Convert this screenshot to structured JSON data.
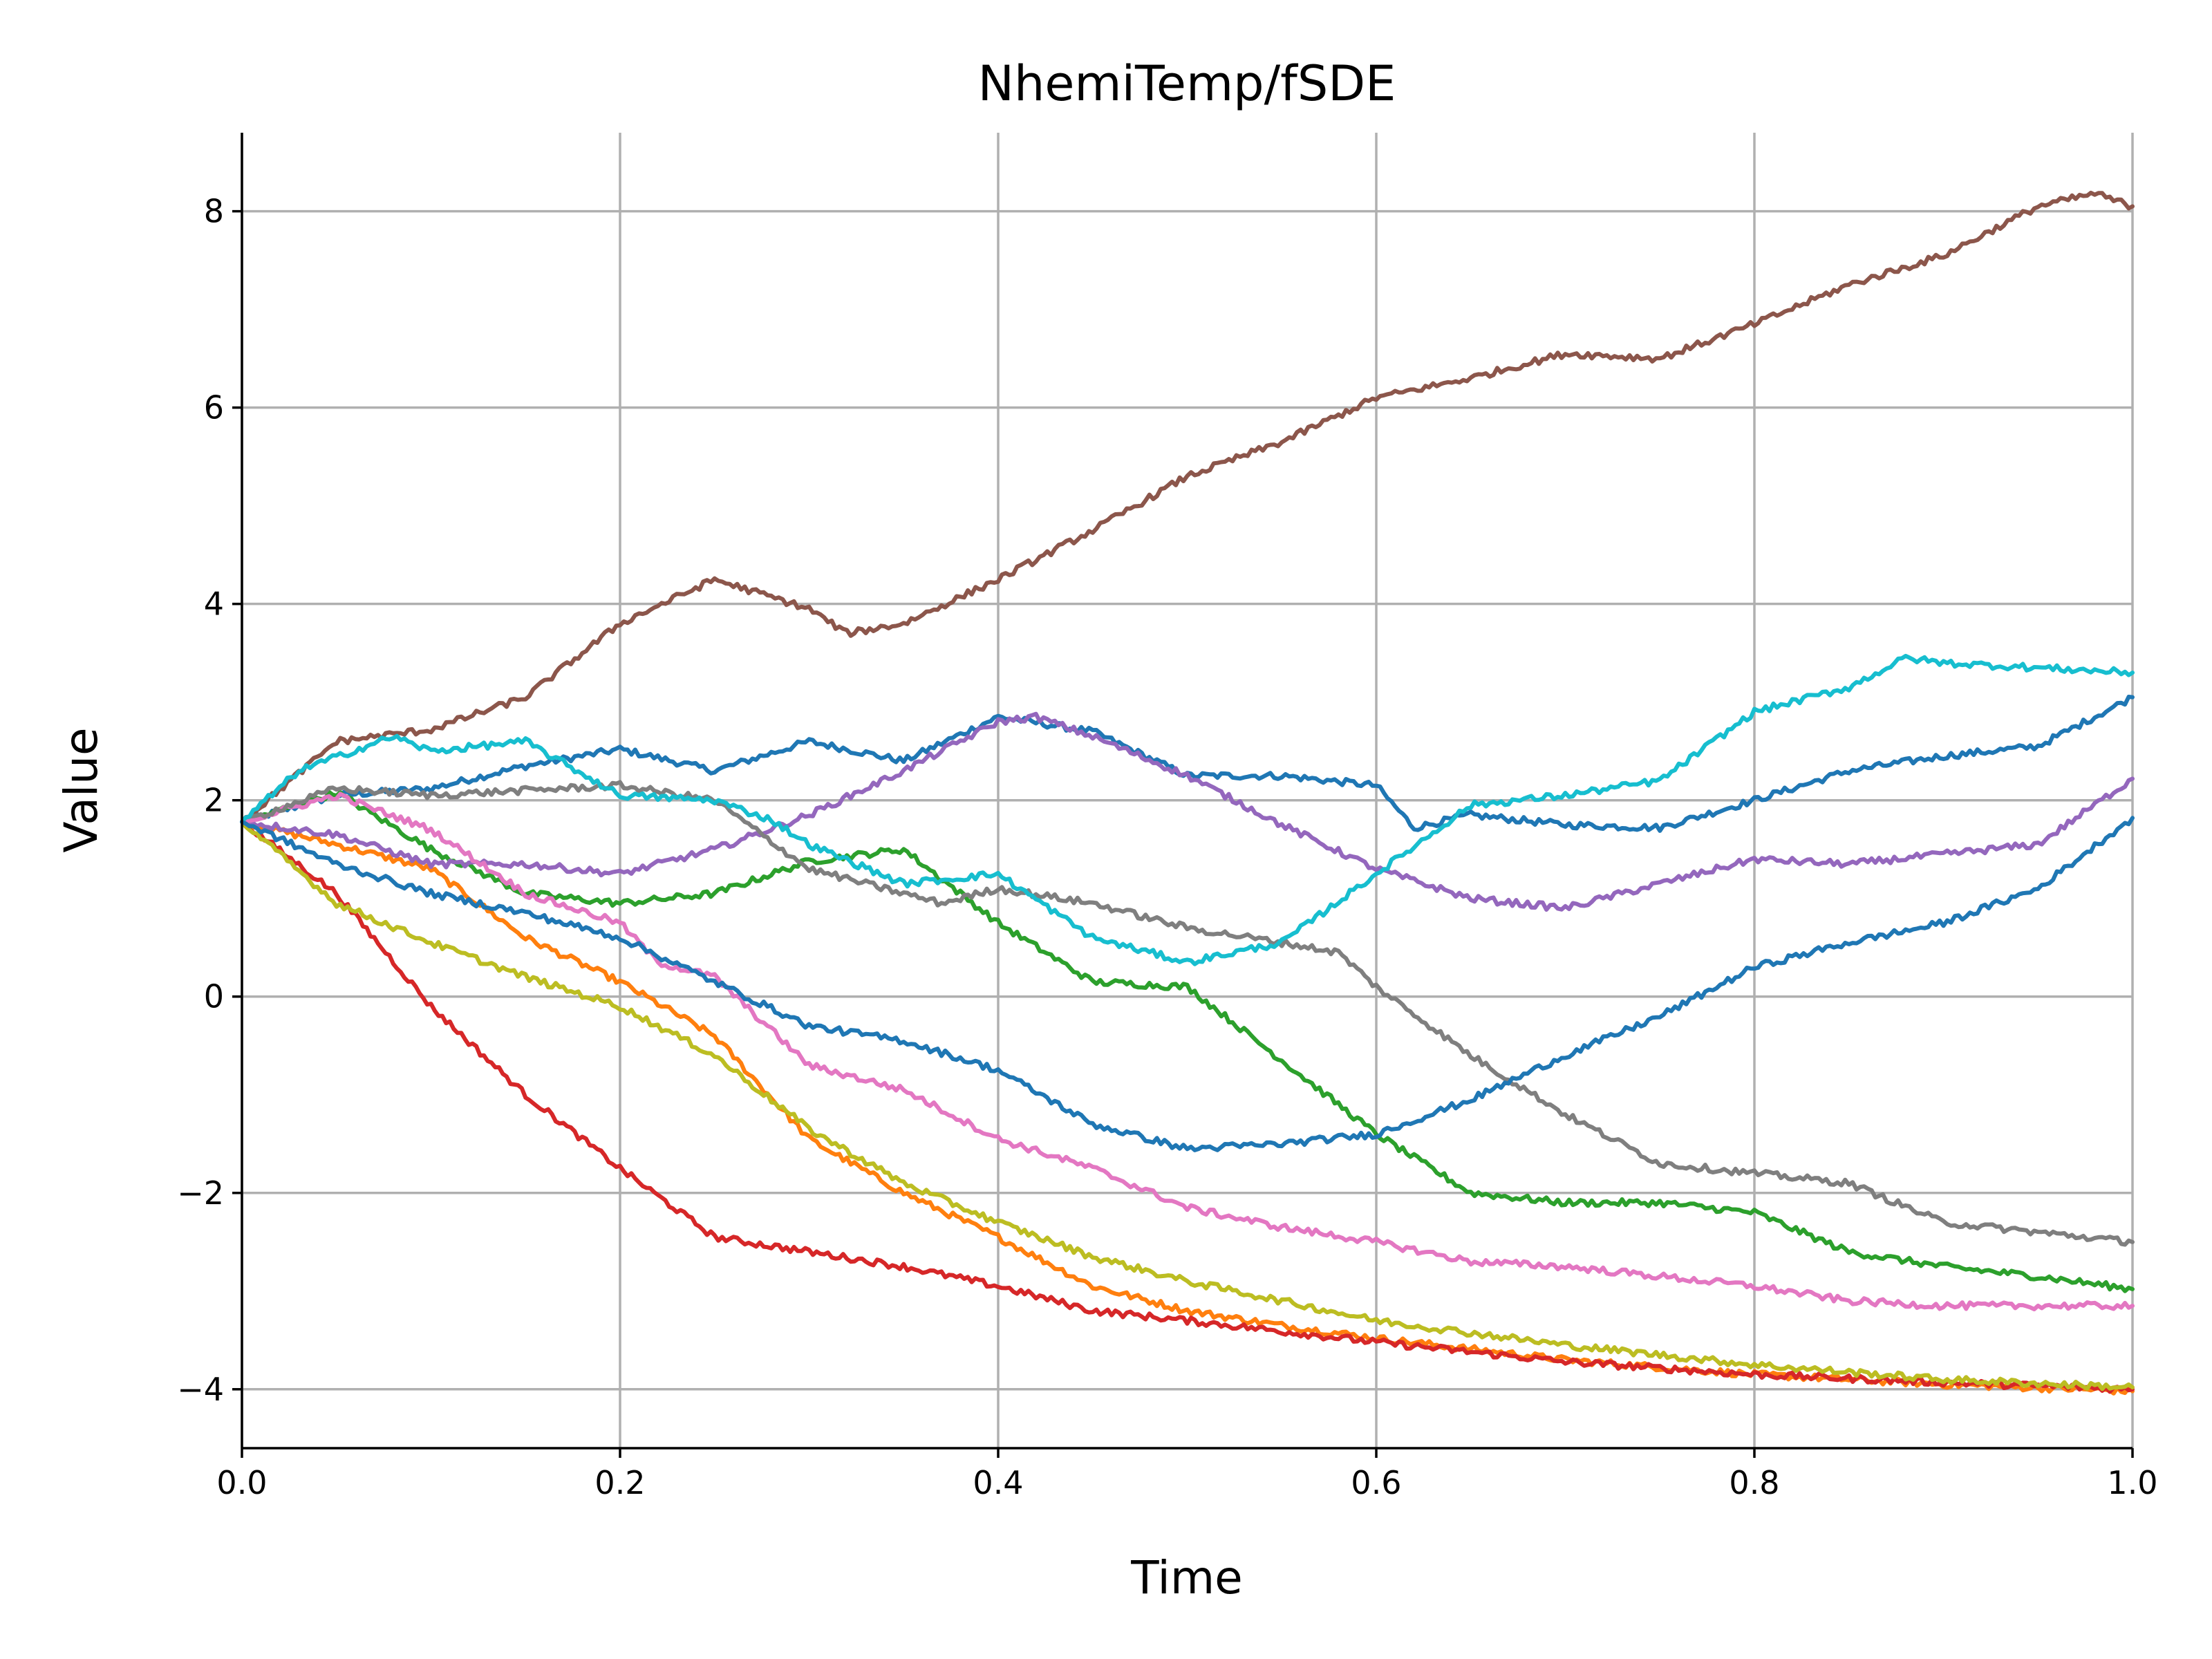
{
  "chart_data": {
    "type": "line",
    "title": "NhemiTemp/fSDE",
    "xlabel": "Time",
    "ylabel": "Value",
    "xlim": [
      0.0,
      1.0
    ],
    "ylim": [
      -4.6,
      8.8
    ],
    "xticks": [
      0.0,
      0.2,
      0.4,
      0.6,
      0.8,
      1.0
    ],
    "xtick_labels": [
      "0.0",
      "0.2",
      "0.4",
      "0.6",
      "0.8",
      "1.0"
    ],
    "yticks": [
      -4,
      -2,
      0,
      2,
      4,
      6,
      8
    ],
    "ytick_labels": [
      "−4",
      "−2",
      "0",
      "2",
      "4",
      "6",
      "8"
    ],
    "grid": true,
    "legend": "none",
    "series": [
      {
        "color": "#1f77b4",
        "points": [
          [
            0,
            1.78
          ],
          [
            0.05,
            2.05
          ],
          [
            0.1,
            2.12
          ],
          [
            0.15,
            2.35
          ],
          [
            0.2,
            2.52
          ],
          [
            0.25,
            2.3
          ],
          [
            0.3,
            2.6
          ],
          [
            0.35,
            2.4
          ],
          [
            0.4,
            2.85
          ],
          [
            0.45,
            2.7
          ],
          [
            0.5,
            2.25
          ],
          [
            0.55,
            2.25
          ],
          [
            0.6,
            2.15
          ],
          [
            0.62,
            1.72
          ],
          [
            0.65,
            1.85
          ],
          [
            0.7,
            1.75
          ],
          [
            0.75,
            1.72
          ],
          [
            0.8,
            2.0
          ],
          [
            0.85,
            2.3
          ],
          [
            0.9,
            2.45
          ],
          [
            0.95,
            2.55
          ],
          [
            1.0,
            3.05
          ]
        ]
      },
      {
        "color": "#ff7f0e",
        "points": [
          [
            0,
            1.78
          ],
          [
            0.05,
            1.55
          ],
          [
            0.1,
            1.3
          ],
          [
            0.15,
            0.6
          ],
          [
            0.2,
            0.15
          ],
          [
            0.25,
            -0.4
          ],
          [
            0.3,
            -1.45
          ],
          [
            0.35,
            -2.0
          ],
          [
            0.4,
            -2.45
          ],
          [
            0.45,
            -2.95
          ],
          [
            0.5,
            -3.2
          ],
          [
            0.55,
            -3.35
          ],
          [
            0.6,
            -3.48
          ],
          [
            0.7,
            -3.7
          ],
          [
            0.8,
            -3.85
          ],
          [
            0.9,
            -3.95
          ],
          [
            1.0,
            -4.02
          ]
        ]
      },
      {
        "color": "#2ca02c",
        "points": [
          [
            0,
            1.78
          ],
          [
            0.05,
            2.08
          ],
          [
            0.1,
            1.5
          ],
          [
            0.15,
            1.05
          ],
          [
            0.2,
            0.95
          ],
          [
            0.25,
            1.05
          ],
          [
            0.3,
            1.38
          ],
          [
            0.35,
            1.5
          ],
          [
            0.4,
            0.75
          ],
          [
            0.45,
            0.15
          ],
          [
            0.5,
            0.1
          ],
          [
            0.55,
            -0.65
          ],
          [
            0.6,
            -1.4
          ],
          [
            0.65,
            -2.0
          ],
          [
            0.7,
            -2.1
          ],
          [
            0.75,
            -2.1
          ],
          [
            0.8,
            -2.2
          ],
          [
            0.85,
            -2.6
          ],
          [
            0.9,
            -2.75
          ],
          [
            0.95,
            -2.85
          ],
          [
            1.0,
            -2.98
          ]
        ]
      },
      {
        "color": "#d62728",
        "points": [
          [
            0,
            1.78
          ],
          [
            0.05,
            1.05
          ],
          [
            0.1,
            -0.1
          ],
          [
            0.15,
            -1.0
          ],
          [
            0.2,
            -1.75
          ],
          [
            0.25,
            -2.45
          ],
          [
            0.3,
            -2.6
          ],
          [
            0.35,
            -2.75
          ],
          [
            0.4,
            -2.95
          ],
          [
            0.45,
            -3.2
          ],
          [
            0.5,
            -3.3
          ],
          [
            0.6,
            -3.52
          ],
          [
            0.7,
            -3.72
          ],
          [
            0.8,
            -3.85
          ],
          [
            0.9,
            -3.93
          ],
          [
            1.0,
            -4.0
          ]
        ]
      },
      {
        "color": "#9467bd",
        "points": [
          [
            0,
            1.78
          ],
          [
            0.05,
            1.65
          ],
          [
            0.1,
            1.35
          ],
          [
            0.15,
            1.35
          ],
          [
            0.2,
            1.25
          ],
          [
            0.25,
            1.5
          ],
          [
            0.3,
            1.85
          ],
          [
            0.35,
            2.3
          ],
          [
            0.4,
            2.8
          ],
          [
            0.42,
            2.85
          ],
          [
            0.45,
            2.65
          ],
          [
            0.5,
            2.25
          ],
          [
            0.55,
            1.75
          ],
          [
            0.6,
            1.3
          ],
          [
            0.65,
            1.0
          ],
          [
            0.7,
            0.9
          ],
          [
            0.75,
            1.15
          ],
          [
            0.8,
            1.4
          ],
          [
            0.85,
            1.35
          ],
          [
            0.9,
            1.45
          ],
          [
            0.95,
            1.55
          ],
          [
            1.0,
            2.22
          ]
        ]
      },
      {
        "color": "#8c564b",
        "points": [
          [
            0,
            1.78
          ],
          [
            0.05,
            2.6
          ],
          [
            0.1,
            2.72
          ],
          [
            0.15,
            3.05
          ],
          [
            0.2,
            3.8
          ],
          [
            0.25,
            4.25
          ],
          [
            0.3,
            3.95
          ],
          [
            0.32,
            3.7
          ],
          [
            0.35,
            3.8
          ],
          [
            0.4,
            4.25
          ],
          [
            0.45,
            4.75
          ],
          [
            0.5,
            5.3
          ],
          [
            0.55,
            5.65
          ],
          [
            0.6,
            6.1
          ],
          [
            0.65,
            6.3
          ],
          [
            0.7,
            6.55
          ],
          [
            0.75,
            6.5
          ],
          [
            0.8,
            6.85
          ],
          [
            0.85,
            7.25
          ],
          [
            0.9,
            7.55
          ],
          [
            0.95,
            8.05
          ],
          [
            0.98,
            8.18
          ],
          [
            1.0,
            8.05
          ]
        ]
      },
      {
        "color": "#e377c2",
        "points": [
          [
            0,
            1.78
          ],
          [
            0.05,
            2.05
          ],
          [
            0.1,
            1.7
          ],
          [
            0.15,
            1.05
          ],
          [
            0.2,
            0.75
          ],
          [
            0.22,
            0.35
          ],
          [
            0.25,
            0.2
          ],
          [
            0.3,
            -0.7
          ],
          [
            0.35,
            -0.95
          ],
          [
            0.4,
            -1.45
          ],
          [
            0.45,
            -1.75
          ],
          [
            0.5,
            -2.15
          ],
          [
            0.55,
            -2.35
          ],
          [
            0.6,
            -2.5
          ],
          [
            0.65,
            -2.7
          ],
          [
            0.7,
            -2.75
          ],
          [
            0.75,
            -2.85
          ],
          [
            0.8,
            -2.95
          ],
          [
            0.85,
            -3.1
          ],
          [
            0.9,
            -3.15
          ],
          [
            1.0,
            -3.15
          ]
        ]
      },
      {
        "color": "#7f7f7f",
        "points": [
          [
            0,
            1.78
          ],
          [
            0.05,
            2.12
          ],
          [
            0.1,
            2.05
          ],
          [
            0.15,
            2.1
          ],
          [
            0.2,
            2.15
          ],
          [
            0.25,
            2.0
          ],
          [
            0.3,
            1.3
          ],
          [
            0.35,
            1.05
          ],
          [
            0.37,
            0.95
          ],
          [
            0.4,
            1.1
          ],
          [
            0.45,
            0.95
          ],
          [
            0.5,
            0.7
          ],
          [
            0.55,
            0.55
          ],
          [
            0.58,
            0.45
          ],
          [
            0.6,
            0.1
          ],
          [
            0.65,
            -0.6
          ],
          [
            0.7,
            -1.2
          ],
          [
            0.75,
            -1.7
          ],
          [
            0.8,
            -1.8
          ],
          [
            0.85,
            -1.9
          ],
          [
            0.9,
            -2.3
          ],
          [
            0.95,
            -2.4
          ],
          [
            1.0,
            -2.5
          ]
        ]
      },
      {
        "color": "#bcbd22",
        "points": [
          [
            0,
            1.78
          ],
          [
            0.05,
            0.95
          ],
          [
            0.1,
            0.55
          ],
          [
            0.15,
            0.2
          ],
          [
            0.2,
            -0.1
          ],
          [
            0.25,
            -0.6
          ],
          [
            0.3,
            -1.35
          ],
          [
            0.35,
            -1.9
          ],
          [
            0.4,
            -2.3
          ],
          [
            0.45,
            -2.65
          ],
          [
            0.5,
            -2.9
          ],
          [
            0.55,
            -3.1
          ],
          [
            0.6,
            -3.3
          ],
          [
            0.7,
            -3.55
          ],
          [
            0.8,
            -3.75
          ],
          [
            0.9,
            -3.9
          ],
          [
            1.0,
            -3.98
          ]
        ]
      },
      {
        "color": "#17becf",
        "points": [
          [
            0,
            1.78
          ],
          [
            0.03,
            2.3
          ],
          [
            0.08,
            2.65
          ],
          [
            0.1,
            2.5
          ],
          [
            0.15,
            2.6
          ],
          [
            0.2,
            2.05
          ],
          [
            0.25,
            2.0
          ],
          [
            0.28,
            1.8
          ],
          [
            0.3,
            1.55
          ],
          [
            0.35,
            1.15
          ],
          [
            0.4,
            1.25
          ],
          [
            0.45,
            0.6
          ],
          [
            0.5,
            0.35
          ],
          [
            0.55,
            0.55
          ],
          [
            0.6,
            1.25
          ],
          [
            0.65,
            1.95
          ],
          [
            0.7,
            2.05
          ],
          [
            0.75,
            2.2
          ],
          [
            0.8,
            2.9
          ],
          [
            0.85,
            3.15
          ],
          [
            0.88,
            3.45
          ],
          [
            0.9,
            3.4
          ],
          [
            0.95,
            3.35
          ],
          [
            1.0,
            3.3
          ]
        ]
      },
      {
        "color": "#1f77b4",
        "points": [
          [
            0,
            1.78
          ],
          [
            0.05,
            1.35
          ],
          [
            0.1,
            1.05
          ],
          [
            0.15,
            0.85
          ],
          [
            0.2,
            0.6
          ],
          [
            0.25,
            0.15
          ],
          [
            0.3,
            -0.3
          ],
          [
            0.35,
            -0.45
          ],
          [
            0.4,
            -0.75
          ],
          [
            0.45,
            -1.3
          ],
          [
            0.5,
            -1.55
          ],
          [
            0.55,
            -1.5
          ],
          [
            0.6,
            -1.4
          ],
          [
            0.65,
            -1.05
          ],
          [
            0.7,
            -0.6
          ],
          [
            0.75,
            -0.2
          ],
          [
            0.8,
            0.3
          ],
          [
            0.85,
            0.55
          ],
          [
            0.9,
            0.75
          ],
          [
            0.95,
            1.1
          ],
          [
            1.0,
            1.82
          ]
        ]
      }
    ]
  }
}
